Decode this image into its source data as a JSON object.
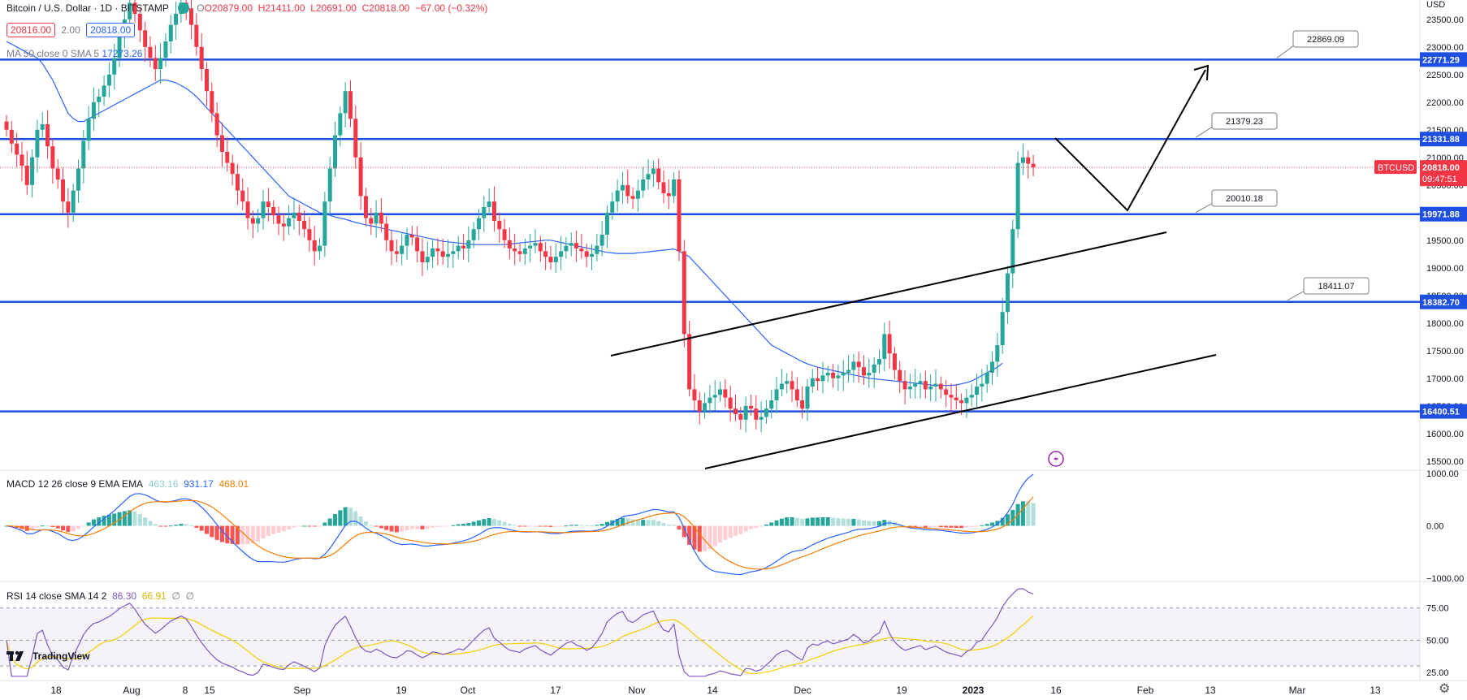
{
  "header": {
    "symbol_title": "Bitcoin / U.S. Dollar · 1D · BITSTAMP",
    "open": "O20879.00",
    "high": "H21411.00",
    "low": "L20691.00",
    "close": "C20818.00",
    "change": "−67.00 (−0.32%)",
    "bid": "20816.00",
    "spread": "2.00",
    "ask": "20818.00",
    "ma_label": "MA 50 close 0 SMA 5",
    "ma_value": "17273.26",
    "currency": "USD"
  },
  "macd_header": {
    "label": "MACD 12 26 close 9 EMA EMA",
    "hist": "463.16",
    "macd": "931.17",
    "signal": "468.01"
  },
  "rsi_header": {
    "label": "RSI 14 close SMA 14 2",
    "rsi": "86.30",
    "ma": "66.91",
    "x1": "∅",
    "x2": "∅"
  },
  "logo_text": "TradingView",
  "colors": {
    "up": "#26a69a",
    "down": "#f23645",
    "level": "#1e4fe0",
    "ma": "#2962ff",
    "macd": "#2962ff",
    "signal": "#f57c00",
    "rsi": "#7e57c2",
    "rsi_ma": "#f0d000"
  },
  "chart_data": {
    "type": "candlestick",
    "price_axis": [
      "23500.00",
      "23000.00",
      "22500.00",
      "22000.00",
      "21500.00",
      "21000.00",
      "20500.00",
      "20000.00",
      "19500.00",
      "19000.00",
      "18500.00",
      "18000.00",
      "17500.00",
      "17000.00",
      "16500.00",
      "16000.00",
      "15500.00"
    ],
    "price_ylim": [
      15350,
      23850
    ],
    "time_axis": [
      "18",
      "Aug",
      "8",
      "15",
      "Sep",
      "19",
      "Oct",
      "17",
      "Nov",
      "14",
      "Dec",
      "19",
      "2023",
      "16",
      "Feb",
      "13",
      "Mar",
      "13"
    ],
    "levels": [
      {
        "price": 22771.29,
        "label": "22771.29",
        "callout": "22869.09"
      },
      {
        "price": 21331.88,
        "label": "21331.88",
        "callout": "21379.23"
      },
      {
        "price": 19971.88,
        "label": "19971.88",
        "callout": "20010.18"
      },
      {
        "price": 18382.7,
        "label": "18382.70",
        "callout": "18411.07"
      },
      {
        "price": 16400.51,
        "label": "16400.51"
      }
    ],
    "last_price": {
      "price": 20818.0,
      "label": "20818.00",
      "countdown": "09:47:51",
      "ticker": "BTCUSD"
    },
    "closes": [
      21500,
      21250,
      21050,
      20850,
      20500,
      21000,
      21500,
      21600,
      21200,
      20800,
      20600,
      20200,
      20000,
      20400,
      20800,
      21300,
      21700,
      22000,
      22100,
      22300,
      22500,
      22800,
      23200,
      23500,
      23800,
      23600,
      23300,
      23000,
      22800,
      22600,
      22800,
      23100,
      23400,
      23600,
      23800,
      23700,
      23400,
      23000,
      22600,
      22200,
      21800,
      21400,
      21100,
      20900,
      20700,
      20400,
      20200,
      19900,
      19800,
      19900,
      20200,
      20100,
      19950,
      19800,
      19750,
      19900,
      20000,
      19850,
      19700,
      19500,
      19300,
      19400,
      20200,
      20800,
      21400,
      21800,
      22200,
      21700,
      21000,
      20300,
      19900,
      19800,
      20000,
      19800,
      19500,
      19300,
      19250,
      19400,
      19600,
      19550,
      19300,
      19100,
      19200,
      19350,
      19300,
      19200,
      19250,
      19300,
      19400,
      19350,
      19500,
      19700,
      19900,
      20100,
      20200,
      19850,
      19700,
      19500,
      19350,
      19300,
      19250,
      19350,
      19400,
      19450,
      19300,
      19200,
      19100,
      19200,
      19300,
      19400,
      19450,
      19350,
      19300,
      19200,
      19250,
      19400,
      19600,
      20000,
      20200,
      20400,
      20500,
      20300,
      20250,
      20400,
      20600,
      20700,
      20800,
      20550,
      20350,
      20300,
      20600,
      19300,
      17800,
      16800,
      16600,
      16400,
      16550,
      16650,
      16700,
      16800,
      16650,
      16450,
      16350,
      16250,
      16500,
      16450,
      16250,
      16300,
      16450,
      16600,
      16800,
      16900,
      16950,
      16800,
      16600,
      16450,
      16850,
      17000,
      16950,
      17050,
      17100,
      17000,
      17050,
      17100,
      17150,
      17300,
      17200,
      17050,
      17100,
      17250,
      17350,
      17800,
      17450,
      17150,
      16950,
      16800,
      16850,
      16900,
      16950,
      16800,
      16850,
      16900,
      16800,
      16700,
      16650,
      16600,
      16550,
      16650,
      16700,
      16850,
      16900,
      17100,
      17300,
      17600,
      18200,
      18900,
      19700,
      20900,
      21000,
      20885,
      20818
    ],
    "opens_start_date": "2022-07-18",
    "ma50": [
      23100,
      23050,
      23000,
      22950,
      22900,
      22850,
      22800,
      22700,
      22550,
      22400,
      22200,
      22000,
      21800,
      21700,
      21650,
      21650,
      21700,
      21750,
      21800,
      21850,
      21900,
      21950,
      22000,
      22050,
      22100,
      22150,
      22200,
      22250,
      22300,
      22350,
      22400,
      22400,
      22380,
      22350,
      22300,
      22250,
      22180,
      22100,
      22000,
      21900,
      21800,
      21700,
      21600,
      21500,
      21400,
      21300,
      21200,
      21100,
      21000,
      20900,
      20800,
      20700,
      20600,
      20500,
      20400,
      20300,
      20250,
      20200,
      20150,
      20100,
      20050,
      20000,
      19980,
      19950,
      19920,
      19900,
      19880,
      19850,
      19820,
      19800,
      19780,
      19760,
      19740,
      19720,
      19700,
      19680,
      19660,
      19640,
      19620,
      19600,
      19580,
      19560,
      19540,
      19520,
      19500,
      19480,
      19470,
      19460,
      19450,
      19440,
      19430,
      19420,
      19420,
      19420,
      19420,
      19420,
      19420,
      19420,
      19430,
      19440,
      19450,
      19460,
      19470,
      19480,
      19490,
      19500,
      19500,
      19480,
      19460,
      19440,
      19420,
      19400,
      19380,
      19360,
      19340,
      19320,
      19300,
      19280,
      19270,
      19260,
      19260,
      19260,
      19260,
      19270,
      19280,
      19290,
      19300,
      19310,
      19320,
      19330,
      19340,
      19300,
      19250,
      19200,
      19100,
      19000,
      18900,
      18800,
      18700,
      18600,
      18500,
      18400,
      18300,
      18200,
      18100,
      18000,
      17900,
      17800,
      17700,
      17600,
      17550,
      17500,
      17450,
      17400,
      17350,
      17300,
      17260,
      17230,
      17200,
      17180,
      17160,
      17140,
      17120,
      17100,
      17080,
      17060,
      17040,
      17020,
      17000,
      16990,
      16980,
      16970,
      16960,
      16950,
      16940,
      16930,
      16920,
      16910,
      16900,
      16890,
      16880,
      16870,
      16870,
      16870,
      16870,
      16880,
      16900,
      16920,
      16950,
      17000,
      17050,
      17100,
      17150,
      17200,
      17273
    ],
    "channel_upper": {
      "from": [
        730,
        18
      ],
      "to": [
        1300,
        120
      ]
    },
    "channel_lower": {
      "from": [
        740,
        40
      ],
      "to": [
        1300,
        120
      ]
    }
  }
}
